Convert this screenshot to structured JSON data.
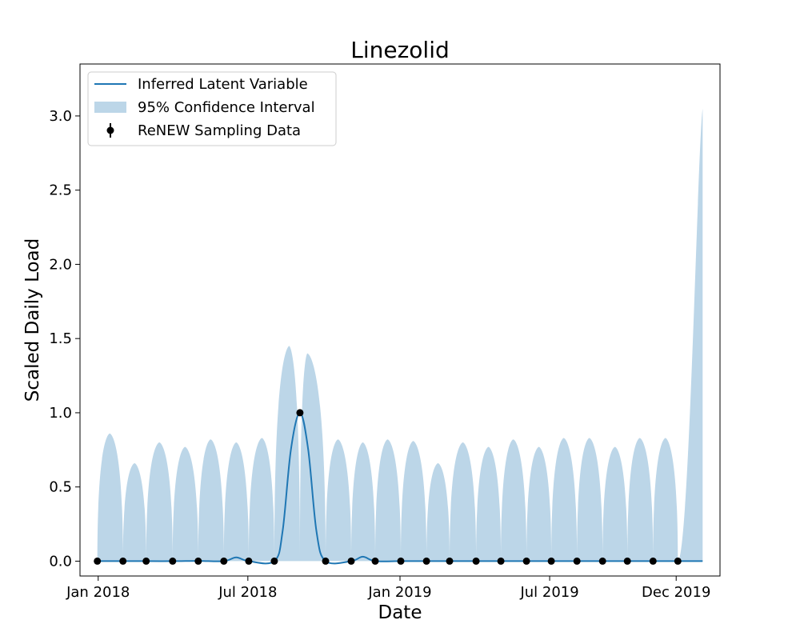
{
  "chart_data": {
    "type": "line",
    "title": "Linezolid",
    "xlabel": "Date",
    "ylabel": "Scaled Daily Load",
    "ylim": [
      -0.1,
      3.35
    ],
    "xlim": [
      "2017-12-10",
      "2020-01-23"
    ],
    "grid": false,
    "legend_position": "top-left",
    "x_ticks": [
      {
        "date": "2018-01-01",
        "label": "Jan 2018"
      },
      {
        "date": "2018-07-01",
        "label": "Jul 2018"
      },
      {
        "date": "2019-01-01",
        "label": "Jan 2019"
      },
      {
        "date": "2019-07-01",
        "label": "Jul 2019"
      },
      {
        "date": "2019-12-01",
        "label": "Dec 2019"
      }
    ],
    "y_ticks": [
      {
        "value": 0.0,
        "label": "0.0"
      },
      {
        "value": 0.5,
        "label": "0.5"
      },
      {
        "value": 1.0,
        "label": "1.0"
      },
      {
        "value": 1.5,
        "label": "1.5"
      },
      {
        "value": 2.0,
        "label": "2.0"
      },
      {
        "value": 2.5,
        "label": "2.5"
      },
      {
        "value": 3.0,
        "label": "3.0"
      }
    ],
    "colors": {
      "latent": "#1f77b4",
      "band": "#bcd6e8",
      "samples": "#000000"
    },
    "series": [
      {
        "name": "Inferred Latent Variable",
        "kind": "line",
        "points": [
          {
            "x": "2017-12-31",
            "y": 0.0
          },
          {
            "x": "2018-01-31",
            "y": 0.0
          },
          {
            "x": "2018-02-28",
            "y": 0.0
          },
          {
            "x": "2018-04-01",
            "y": 0.0
          },
          {
            "x": "2018-05-02",
            "y": 0.002
          },
          {
            "x": "2018-06-02",
            "y": 0.0
          },
          {
            "x": "2018-06-17",
            "y": 0.025
          },
          {
            "x": "2018-07-02",
            "y": 0.0
          },
          {
            "x": "2018-08-02",
            "y": 0.0
          },
          {
            "x": "2018-08-12",
            "y": 0.2
          },
          {
            "x": "2018-08-22",
            "y": 0.75
          },
          {
            "x": "2018-09-02",
            "y": 1.0
          },
          {
            "x": "2018-09-12",
            "y": 0.75
          },
          {
            "x": "2018-09-22",
            "y": 0.2
          },
          {
            "x": "2018-10-03",
            "y": 0.0
          },
          {
            "x": "2018-11-03",
            "y": 0.0
          },
          {
            "x": "2018-11-17",
            "y": 0.03
          },
          {
            "x": "2018-12-02",
            "y": 0.0
          },
          {
            "x": "2019-01-02",
            "y": 0.0
          },
          {
            "x": "2019-02-02",
            "y": 0.0
          },
          {
            "x": "2019-03-02",
            "y": 0.0
          },
          {
            "x": "2019-04-03",
            "y": 0.0
          },
          {
            "x": "2019-05-03",
            "y": 0.0
          },
          {
            "x": "2019-06-03",
            "y": 0.0
          },
          {
            "x": "2019-07-03",
            "y": 0.0
          },
          {
            "x": "2019-08-03",
            "y": 0.0
          },
          {
            "x": "2019-09-03",
            "y": 0.0
          },
          {
            "x": "2019-10-03",
            "y": 0.0
          },
          {
            "x": "2019-11-03",
            "y": 0.0
          },
          {
            "x": "2019-12-03",
            "y": 0.0
          },
          {
            "x": "2020-01-02",
            "y": 0.0
          }
        ]
      },
      {
        "name": "95% Confidence Interval",
        "kind": "band",
        "peaks": [
          {
            "x": "2018-01-15",
            "upper": 0.86
          },
          {
            "x": "2018-02-14",
            "upper": 0.66
          },
          {
            "x": "2018-03-16",
            "upper": 0.8
          },
          {
            "x": "2018-04-16",
            "upper": 0.77
          },
          {
            "x": "2018-05-17",
            "upper": 0.82
          },
          {
            "x": "2018-06-17",
            "upper": 0.8
          },
          {
            "x": "2018-07-18",
            "upper": 0.83
          },
          {
            "x": "2018-08-20",
            "upper": 1.45
          },
          {
            "x": "2018-09-11",
            "upper": 1.4
          },
          {
            "x": "2018-10-18",
            "upper": 0.82
          },
          {
            "x": "2018-11-17",
            "upper": 0.8
          },
          {
            "x": "2018-12-17",
            "upper": 0.82
          },
          {
            "x": "2019-01-17",
            "upper": 0.81
          },
          {
            "x": "2019-02-16",
            "upper": 0.66
          },
          {
            "x": "2019-03-18",
            "upper": 0.8
          },
          {
            "x": "2019-04-18",
            "upper": 0.77
          },
          {
            "x": "2019-05-18",
            "upper": 0.82
          },
          {
            "x": "2019-06-18",
            "upper": 0.77
          },
          {
            "x": "2019-07-18",
            "upper": 0.83
          },
          {
            "x": "2019-08-18",
            "upper": 0.83
          },
          {
            "x": "2019-09-18",
            "upper": 0.77
          },
          {
            "x": "2019-10-18",
            "upper": 0.83
          },
          {
            "x": "2019-11-18",
            "upper": 0.83
          }
        ],
        "tail": {
          "x": "2020-01-02",
          "upper": 3.05
        }
      },
      {
        "name": "ReNEW Sampling Data",
        "kind": "points",
        "points": [
          {
            "x": "2017-12-31",
            "y": 0.0
          },
          {
            "x": "2018-01-31",
            "y": 0.0
          },
          {
            "x": "2018-02-28",
            "y": 0.0
          },
          {
            "x": "2018-04-01",
            "y": 0.0
          },
          {
            "x": "2018-05-02",
            "y": 0.0
          },
          {
            "x": "2018-06-02",
            "y": 0.0
          },
          {
            "x": "2018-07-02",
            "y": 0.0
          },
          {
            "x": "2018-08-02",
            "y": 0.0
          },
          {
            "x": "2018-09-02",
            "y": 1.0
          },
          {
            "x": "2018-10-03",
            "y": 0.0
          },
          {
            "x": "2018-11-03",
            "y": 0.0
          },
          {
            "x": "2018-12-02",
            "y": 0.0
          },
          {
            "x": "2019-01-02",
            "y": 0.0
          },
          {
            "x": "2019-02-02",
            "y": 0.0
          },
          {
            "x": "2019-03-02",
            "y": 0.0
          },
          {
            "x": "2019-04-03",
            "y": 0.0
          },
          {
            "x": "2019-05-03",
            "y": 0.0
          },
          {
            "x": "2019-06-03",
            "y": 0.0
          },
          {
            "x": "2019-07-03",
            "y": 0.0
          },
          {
            "x": "2019-08-03",
            "y": 0.0
          },
          {
            "x": "2019-09-03",
            "y": 0.0
          },
          {
            "x": "2019-10-03",
            "y": 0.0
          },
          {
            "x": "2019-11-03",
            "y": 0.0
          },
          {
            "x": "2019-12-03",
            "y": 0.0
          }
        ]
      }
    ]
  }
}
